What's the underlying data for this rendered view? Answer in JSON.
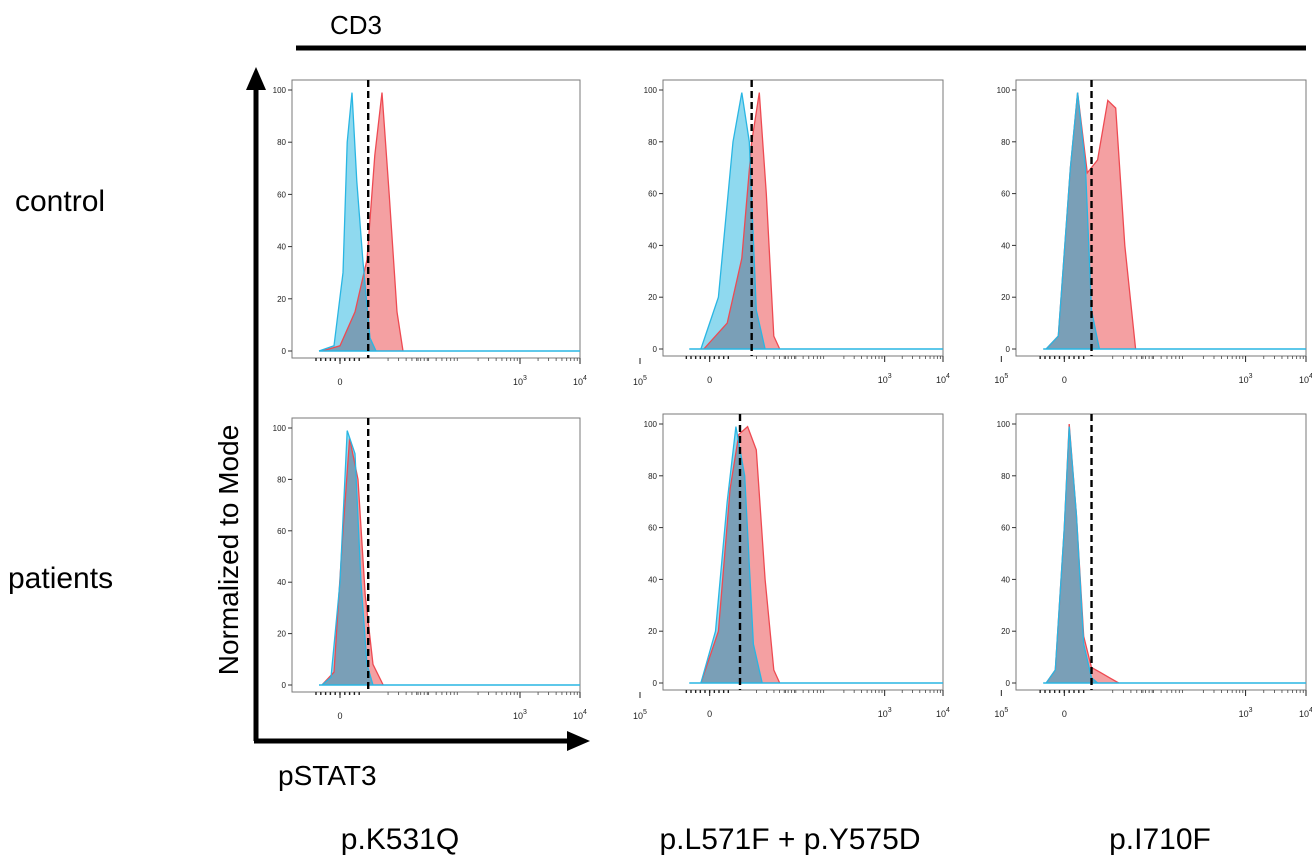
{
  "figure": {
    "group_label": "CD3",
    "y_axis_label": "Normalized to Mode",
    "x_axis_label": "pSTAT3",
    "row_labels": [
      "control",
      "patients"
    ],
    "column_labels": [
      "p.K531Q",
      "p.L571F + p.Y575D",
      "p.I710F"
    ],
    "colors": {
      "red_fill": "#f4a0a2",
      "red_line": "#ee4a52",
      "blue_fill": "#8fd9ef",
      "blue_line": "#29b6e3",
      "overlap_fill": "#7a9fb7",
      "dashed_line": "#000000"
    }
  },
  "chart_data": [
    {
      "type": "area",
      "panel": "control / p.K531Q",
      "y_ticks": [
        "0",
        "20",
        "40",
        "60",
        "80",
        "100"
      ],
      "ylim": [
        0,
        100
      ],
      "x_ticks": [
        "0",
        "10^3",
        "10^4",
        "10^5"
      ],
      "xlim": [
        -0.8,
        4.0
      ],
      "gate_x": 0.47,
      "series": [
        {
          "color": "blue",
          "points": [
            [
              -0.35,
              0
            ],
            [
              -0.1,
              2
            ],
            [
              0.05,
              30
            ],
            [
              0.12,
              80
            ],
            [
              0.2,
              99
            ],
            [
              0.28,
              65
            ],
            [
              0.38,
              35
            ],
            [
              0.5,
              5
            ],
            [
              0.6,
              0
            ]
          ]
        },
        {
          "color": "red",
          "points": [
            [
              -0.3,
              0
            ],
            [
              0.0,
              2
            ],
            [
              0.25,
              15
            ],
            [
              0.45,
              35
            ],
            [
              0.58,
              75
            ],
            [
              0.7,
              99
            ],
            [
              0.82,
              60
            ],
            [
              0.95,
              15
            ],
            [
              1.05,
              0
            ]
          ]
        }
      ]
    },
    {
      "type": "area",
      "panel": "control / p.L571F + p.Y575D",
      "y_ticks": [
        "0",
        "20",
        "40",
        "60",
        "80",
        "100"
      ],
      "ylim": [
        0,
        100
      ],
      "x_ticks": [
        "0",
        "10^3",
        "10^4",
        "10^5"
      ],
      "xlim": [
        -0.8,
        4.0
      ],
      "gate_x": 0.72,
      "series": [
        {
          "color": "blue",
          "points": [
            [
              -0.15,
              0
            ],
            [
              0.15,
              20
            ],
            [
              0.4,
              80
            ],
            [
              0.55,
              99
            ],
            [
              0.68,
              80
            ],
            [
              0.8,
              15
            ],
            [
              0.95,
              0
            ]
          ]
        },
        {
          "color": "red",
          "points": [
            [
              -0.1,
              0
            ],
            [
              0.3,
              10
            ],
            [
              0.55,
              35
            ],
            [
              0.72,
              80
            ],
            [
              0.85,
              99
            ],
            [
              0.97,
              60
            ],
            [
              1.1,
              5
            ],
            [
              1.2,
              0
            ]
          ]
        }
      ]
    },
    {
      "type": "area",
      "panel": "control / p.I710F",
      "y_ticks": [
        "0",
        "20",
        "40",
        "60",
        "80",
        "100"
      ],
      "ylim": [
        0,
        100
      ],
      "x_ticks": [
        "0",
        "10^3",
        "10^4",
        "10^5"
      ],
      "xlim": [
        -0.8,
        4.0
      ],
      "gate_x": 0.45,
      "series": [
        {
          "color": "blue",
          "points": [
            [
              -0.3,
              0
            ],
            [
              -0.1,
              5
            ],
            [
              0.1,
              70
            ],
            [
              0.22,
              99
            ],
            [
              0.35,
              70
            ],
            [
              0.45,
              15
            ],
            [
              0.58,
              0
            ]
          ]
        },
        {
          "color": "red",
          "points": [
            [
              -0.3,
              0
            ],
            [
              -0.1,
              5
            ],
            [
              0.1,
              70
            ],
            [
              0.22,
              99
            ],
            [
              0.38,
              68
            ],
            [
              0.55,
              73
            ],
            [
              0.72,
              96
            ],
            [
              0.85,
              93
            ],
            [
              1.0,
              40
            ],
            [
              1.18,
              0
            ]
          ]
        }
      ]
    },
    {
      "type": "area",
      "panel": "patients / p.K531Q",
      "y_ticks": [
        "0",
        "20",
        "40",
        "60",
        "80",
        "100"
      ],
      "ylim": [
        0,
        100
      ],
      "x_ticks": [
        "0",
        "10^3",
        "10^4",
        "10^5"
      ],
      "xlim": [
        -0.8,
        4.0
      ],
      "gate_x": 0.47,
      "series": [
        {
          "color": "blue",
          "points": [
            [
              -0.3,
              0
            ],
            [
              -0.15,
              3
            ],
            [
              0.0,
              40
            ],
            [
              0.12,
              99
            ],
            [
              0.25,
              90
            ],
            [
              0.35,
              40
            ],
            [
              0.45,
              8
            ],
            [
              0.55,
              0
            ]
          ]
        },
        {
          "color": "red",
          "points": [
            [
              -0.3,
              0
            ],
            [
              -0.1,
              5
            ],
            [
              0.05,
              60
            ],
            [
              0.16,
              96
            ],
            [
              0.3,
              80
            ],
            [
              0.42,
              35
            ],
            [
              0.55,
              8
            ],
            [
              0.72,
              0
            ]
          ]
        }
      ]
    },
    {
      "type": "area",
      "panel": "patients / p.L571F + p.Y575D",
      "y_ticks": [
        "0",
        "20",
        "40",
        "60",
        "80",
        "100"
      ],
      "ylim": [
        0,
        100
      ],
      "x_ticks": [
        "0",
        "10^3",
        "10^4",
        "10^5"
      ],
      "xlim": [
        -0.8,
        4.0
      ],
      "gate_x": 0.52,
      "series": [
        {
          "color": "blue",
          "points": [
            [
              -0.15,
              0
            ],
            [
              0.1,
              20
            ],
            [
              0.3,
              70
            ],
            [
              0.45,
              99
            ],
            [
              0.6,
              80
            ],
            [
              0.75,
              15
            ],
            [
              0.9,
              0
            ]
          ]
        },
        {
          "color": "red",
          "points": [
            [
              -0.15,
              0
            ],
            [
              0.15,
              20
            ],
            [
              0.35,
              75
            ],
            [
              0.5,
              96
            ],
            [
              0.65,
              99
            ],
            [
              0.8,
              90
            ],
            [
              0.95,
              40
            ],
            [
              1.1,
              5
            ],
            [
              1.2,
              0
            ]
          ]
        }
      ]
    },
    {
      "type": "area",
      "panel": "patients / p.I710F",
      "y_ticks": [
        "0",
        "20",
        "40",
        "60",
        "80",
        "100"
      ],
      "ylim": [
        0,
        100
      ],
      "x_ticks": [
        "0",
        "10^3",
        "10^4",
        "10^5"
      ],
      "xlim": [
        -0.8,
        4.0
      ],
      "gate_x": 0.45,
      "series": [
        {
          "color": "blue",
          "points": [
            [
              -0.3,
              0
            ],
            [
              -0.15,
              5
            ],
            [
              0.0,
              60
            ],
            [
              0.08,
              99
            ],
            [
              0.2,
              65
            ],
            [
              0.32,
              15
            ],
            [
              0.45,
              2
            ],
            [
              0.55,
              0
            ]
          ]
        },
        {
          "color": "red",
          "points": [
            [
              -0.3,
              0
            ],
            [
              -0.15,
              5
            ],
            [
              0.0,
              60
            ],
            [
              0.08,
              100
            ],
            [
              0.2,
              65
            ],
            [
              0.32,
              18
            ],
            [
              0.45,
              6
            ],
            [
              0.6,
              4
            ],
            [
              0.75,
              2
            ],
            [
              0.9,
              0
            ]
          ]
        }
      ]
    }
  ]
}
